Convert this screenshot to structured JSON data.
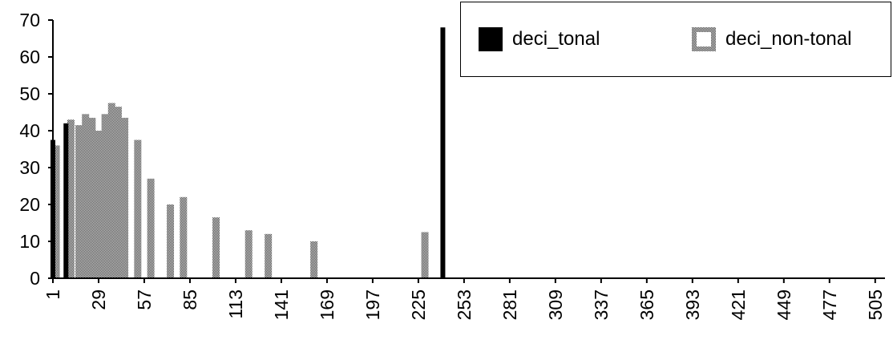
{
  "chart_data": {
    "type": "bar",
    "title": "",
    "xlabel": "",
    "ylabel": "",
    "ylim": [
      0,
      70
    ],
    "yticks": [
      0,
      10,
      20,
      30,
      40,
      50,
      60,
      70
    ],
    "xlim": [
      1,
      511
    ],
    "xticks": [
      1,
      29,
      57,
      85,
      113,
      141,
      169,
      197,
      225,
      253,
      281,
      309,
      337,
      365,
      393,
      421,
      449,
      477,
      505
    ],
    "grid": false,
    "legend_position": "top-right",
    "series": [
      {
        "name": "deci_tonal",
        "color": "#000000",
        "pattern": "solid",
        "points": [
          {
            "x": 1,
            "y": 37.5
          },
          {
            "x": 9,
            "y": 42
          },
          {
            "x": 240,
            "y": 68
          }
        ]
      },
      {
        "name": "deci_non-tonal",
        "color": "#8c8c8c",
        "pattern": "checkered",
        "points": [
          {
            "x": 3,
            "y": 36
          },
          {
            "x": 12,
            "y": 43
          },
          {
            "x": 17,
            "y": 41.5
          },
          {
            "x": 21,
            "y": 44.5
          },
          {
            "x": 25,
            "y": 43.5
          },
          {
            "x": 29,
            "y": 40
          },
          {
            "x": 33,
            "y": 44.5
          },
          {
            "x": 37,
            "y": 47.5
          },
          {
            "x": 41,
            "y": 46.5
          },
          {
            "x": 45,
            "y": 43.5
          },
          {
            "x": 53,
            "y": 37.5
          },
          {
            "x": 61,
            "y": 27
          },
          {
            "x": 73,
            "y": 20
          },
          {
            "x": 81,
            "y": 22
          },
          {
            "x": 101,
            "y": 16.5
          },
          {
            "x": 121,
            "y": 13
          },
          {
            "x": 133,
            "y": 12
          },
          {
            "x": 161,
            "y": 10
          },
          {
            "x": 229,
            "y": 12.5
          }
        ]
      }
    ]
  }
}
